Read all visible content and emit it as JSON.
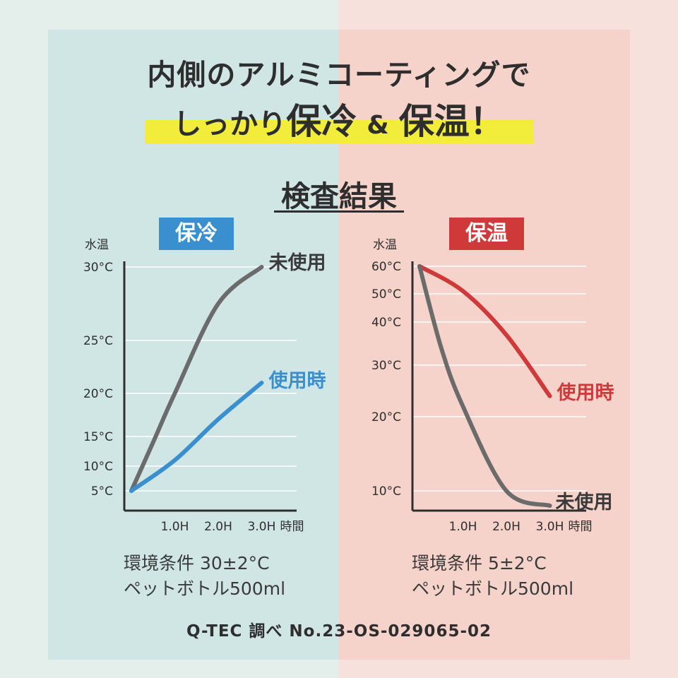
{
  "headline": {
    "line1": "内側のアルミコーティングで",
    "line2_a": "しっかり",
    "line2_b": "保冷",
    "line2_amp": "&",
    "line2_c": "保温",
    "line2_d": "！"
  },
  "section_title": "検査結果",
  "colors": {
    "cold": "#3a8fcf",
    "hot": "#cf393a",
    "unused": "#6b6b6b",
    "axis": "#2e2e2e",
    "highlight": "#f2ec3a"
  },
  "chart_data": [
    {
      "type": "line",
      "title": "保冷",
      "ylabel": "水温",
      "xlabel": "時間",
      "x_ticks": [
        "1.0H",
        "2.0H",
        "3.0H"
      ],
      "y_ticks": [
        {
          "value": 5,
          "label": "5°C"
        },
        {
          "value": 10,
          "label": "10°C"
        },
        {
          "value": 15,
          "label": "15°C"
        },
        {
          "value": 20,
          "label": "20°C"
        },
        {
          "value": 25,
          "label": "25°C"
        },
        {
          "value": 30,
          "label": "30°C"
        }
      ],
      "series": [
        {
          "name": "未使用",
          "color": "#6b6b6b",
          "points": [
            [
              0,
              5
            ],
            [
              0.5,
              14
            ],
            [
              1.0,
              20
            ],
            [
              2.0,
              27.5
            ],
            [
              3.0,
              30
            ]
          ]
        },
        {
          "name": "使用時",
          "color": "#3a8fcf",
          "points": [
            [
              0,
              5
            ],
            [
              1.0,
              11
            ],
            [
              2.0,
              17
            ],
            [
              3.0,
              21
            ]
          ]
        }
      ],
      "condition_line1": "環境条件 30±2°C",
      "condition_line2": "ペットボトル500ml"
    },
    {
      "type": "line",
      "title": "保温",
      "ylabel": "水温",
      "xlabel": "時間",
      "x_ticks": [
        "1.0H",
        "2.0H",
        "3.0H"
      ],
      "y_ticks": [
        {
          "value": 10,
          "label": "10°C"
        },
        {
          "value": 20,
          "label": "20°C"
        },
        {
          "value": 30,
          "label": "30°C"
        },
        {
          "value": 40,
          "label": "40°C"
        },
        {
          "value": 50,
          "label": "50°C"
        },
        {
          "value": 60,
          "label": "60°C"
        }
      ],
      "series": [
        {
          "name": "使用時",
          "color": "#cf393a",
          "points": [
            [
              0,
              60
            ],
            [
              1.0,
              51
            ],
            [
              2.0,
              37
            ],
            [
              3.0,
              24
            ]
          ]
        },
        {
          "name": "未使用",
          "color": "#6b6b6b",
          "points": [
            [
              0,
              60
            ],
            [
              0.5,
              34
            ],
            [
              1.0,
              22
            ],
            [
              2.0,
              10
            ],
            [
              3.0,
              8
            ]
          ]
        }
      ],
      "condition_line1": "環境条件 5±2°C",
      "condition_line2": "ペットボトル500ml"
    }
  ],
  "source": "Q-TEC 調べ No.23-OS-029065-02"
}
